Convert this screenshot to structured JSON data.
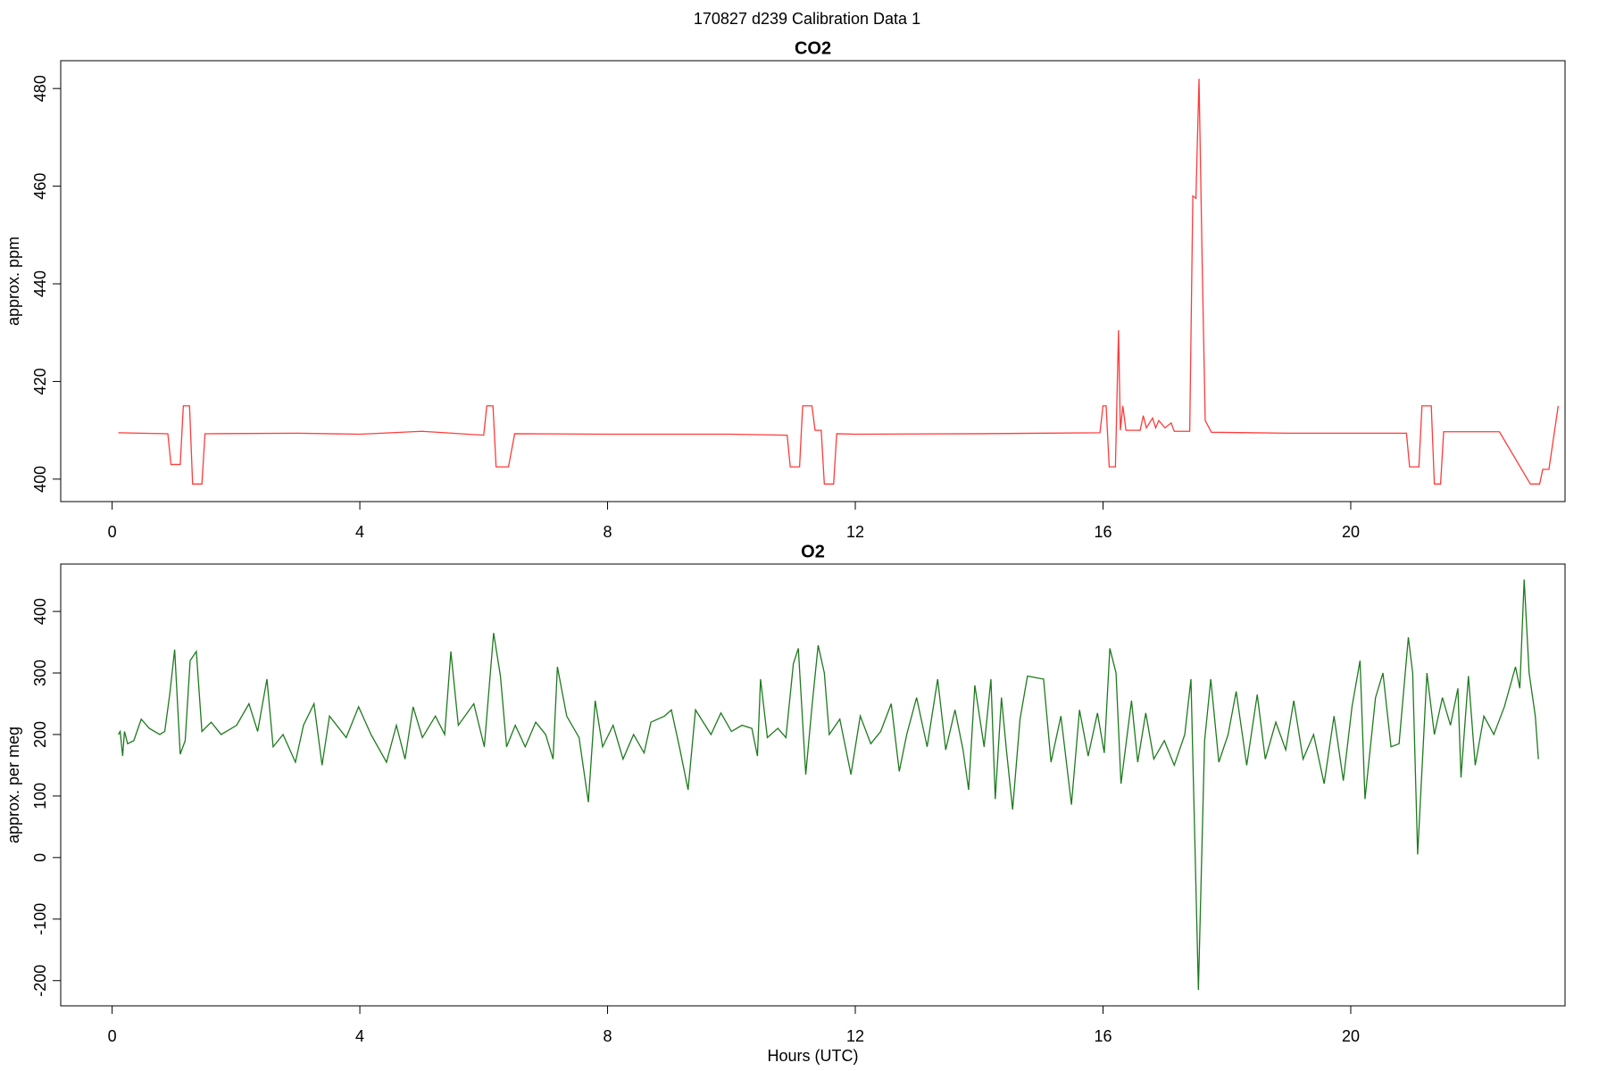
{
  "title": "170827   d239   Calibration Data 1",
  "chart_data": [
    {
      "type": "line",
      "title": "CO2",
      "ylabel": "approx. ppm",
      "color": "#ff3b3b",
      "xlim": [
        -0.83,
        23.46
      ],
      "xticks": [
        0,
        4,
        8,
        12,
        16,
        20
      ],
      "ylim": [
        395.4,
        485.7
      ],
      "yticks": [
        400,
        420,
        440,
        460,
        480
      ],
      "x": [
        0.1,
        0.9,
        0.95,
        1.1,
        1.15,
        1.25,
        1.3,
        1.45,
        1.5,
        3,
        4,
        5,
        6,
        6.05,
        6.15,
        6.2,
        6.4,
        6.5,
        8,
        10,
        10.9,
        10.95,
        11.1,
        11.15,
        11.3,
        11.35,
        11.45,
        11.5,
        11.65,
        11.7,
        12,
        14,
        15.95,
        16.0,
        16.05,
        16.1,
        16.2,
        16.25,
        16.28,
        16.32,
        16.37,
        16.6,
        16.65,
        16.7,
        16.8,
        16.85,
        16.9,
        17.0,
        17.1,
        17.15,
        17.4,
        17.45,
        17.5,
        17.55,
        17.6,
        17.65,
        17.75,
        19,
        20.9,
        20.95,
        21.1,
        21.15,
        21.3,
        21.35,
        21.45,
        21.5,
        22.4,
        22.9,
        23.05,
        23.1,
        23.2,
        23.35
      ],
      "values": [
        409.5,
        409.3,
        403,
        403,
        415,
        415,
        399,
        399,
        409.3,
        409.4,
        409.2,
        409.8,
        409,
        415,
        415,
        402.5,
        402.5,
        409.3,
        409.2,
        409.2,
        409,
        402.5,
        402.5,
        415,
        415,
        410,
        410,
        399,
        399,
        409.3,
        409.2,
        409.3,
        409.5,
        415,
        415,
        402.5,
        402.5,
        430.5,
        410,
        415,
        410,
        410,
        413,
        410.5,
        412.5,
        410.5,
        412,
        410.5,
        411.5,
        409.8,
        409.8,
        458,
        457.5,
        482,
        445,
        412,
        409.6,
        409.4,
        409.4,
        402.5,
        402.5,
        415,
        415,
        399,
        399,
        409.7,
        409.7,
        399,
        399,
        402,
        402,
        415
      ]
    },
    {
      "type": "line",
      "title": "O2",
      "ylabel": "approx. per meg",
      "xlabel": "Hours (UTC)",
      "color": "#1e7a1e",
      "xlim": [
        -0.83,
        23.46
      ],
      "xticks": [
        0,
        4,
        8,
        12,
        16,
        20
      ],
      "ylim": [
        -241,
        477
      ],
      "yticks": [
        -200,
        -100,
        0,
        100,
        200,
        300,
        400
      ],
      "x": [
        0.1,
        0.13,
        0.17,
        0.2,
        0.25,
        0.35,
        0.47,
        0.6,
        0.77,
        0.85,
        0.93,
        1.01,
        1.1,
        1.18,
        1.26,
        1.36,
        1.45,
        1.6,
        1.76,
        2.01,
        2.21,
        2.35,
        2.5,
        2.6,
        2.76,
        2.96,
        3.09,
        3.26,
        3.39,
        3.51,
        3.78,
        3.98,
        4.18,
        4.43,
        4.59,
        4.73,
        4.86,
        5.01,
        5.22,
        5.37,
        5.47,
        5.59,
        5.84,
        6.01,
        6.16,
        6.27,
        6.37,
        6.51,
        6.67,
        6.84,
        7.0,
        7.12,
        7.19,
        7.34,
        7.54,
        7.69,
        7.8,
        7.92,
        8.09,
        8.25,
        8.42,
        8.59,
        8.7,
        8.92,
        9.03,
        9.17,
        9.3,
        9.42,
        9.67,
        9.83,
        10.0,
        10.17,
        10.33,
        10.42,
        10.47,
        10.58,
        10.75,
        10.88,
        11.0,
        11.08,
        11.2,
        11.3,
        11.4,
        11.5,
        11.58,
        11.75,
        11.93,
        12.08,
        12.25,
        12.41,
        12.58,
        12.71,
        12.83,
        12.99,
        13.16,
        13.33,
        13.46,
        13.61,
        13.74,
        13.83,
        13.93,
        14.08,
        14.19,
        14.26,
        14.36,
        14.44,
        14.54,
        14.66,
        14.78,
        15.04,
        15.16,
        15.32,
        15.49,
        15.62,
        15.76,
        15.91,
        16.02,
        16.11,
        16.21,
        16.29,
        16.46,
        16.56,
        16.69,
        16.82,
        16.99,
        17.15,
        17.32,
        17.42,
        17.54,
        17.64,
        17.74,
        17.87,
        18.02,
        18.15,
        18.32,
        18.49,
        18.62,
        18.79,
        18.95,
        19.08,
        19.23,
        19.4,
        19.57,
        19.73,
        19.88,
        20.02,
        20.15,
        20.23,
        20.4,
        20.52,
        20.65,
        20.78,
        20.93,
        21.0,
        21.08,
        21.23,
        21.35,
        21.48,
        21.61,
        21.73,
        21.78,
        21.9,
        22.01,
        22.15,
        22.31,
        22.48,
        22.66,
        22.73,
        22.8,
        22.88,
        22.98,
        23.03
      ],
      "values": [
        200,
        205,
        165,
        205,
        185,
        190,
        225,
        210,
        200,
        205,
        265,
        338,
        168,
        190,
        320,
        335,
        205,
        220,
        200,
        215,
        250,
        205,
        290,
        180,
        200,
        155,
        215,
        250,
        150,
        230,
        195,
        245,
        200,
        155,
        215,
        160,
        245,
        195,
        230,
        200,
        335,
        215,
        250,
        180,
        365,
        295,
        180,
        215,
        180,
        220,
        200,
        160,
        310,
        230,
        195,
        90,
        255,
        180,
        215,
        160,
        200,
        170,
        220,
        230,
        240,
        175,
        110,
        240,
        200,
        235,
        205,
        215,
        210,
        165,
        290,
        195,
        210,
        195,
        315,
        340,
        135,
        245,
        345,
        300,
        200,
        225,
        135,
        230,
        185,
        205,
        250,
        140,
        200,
        260,
        180,
        290,
        175,
        240,
        175,
        110,
        280,
        180,
        290,
        95,
        260,
        175,
        78,
        225,
        295,
        290,
        155,
        230,
        86,
        240,
        165,
        235,
        170,
        340,
        300,
        120,
        255,
        155,
        235,
        160,
        190,
        150,
        200,
        290,
        -215,
        190,
        290,
        155,
        200,
        270,
        150,
        265,
        160,
        220,
        175,
        255,
        160,
        200,
        120,
        230,
        125,
        245,
        320,
        95,
        260,
        300,
        180,
        185,
        358,
        300,
        5,
        300,
        200,
        260,
        215,
        275,
        130,
        295,
        150,
        230,
        200,
        245,
        310,
        275,
        452,
        300,
        230,
        160
      ]
    }
  ]
}
